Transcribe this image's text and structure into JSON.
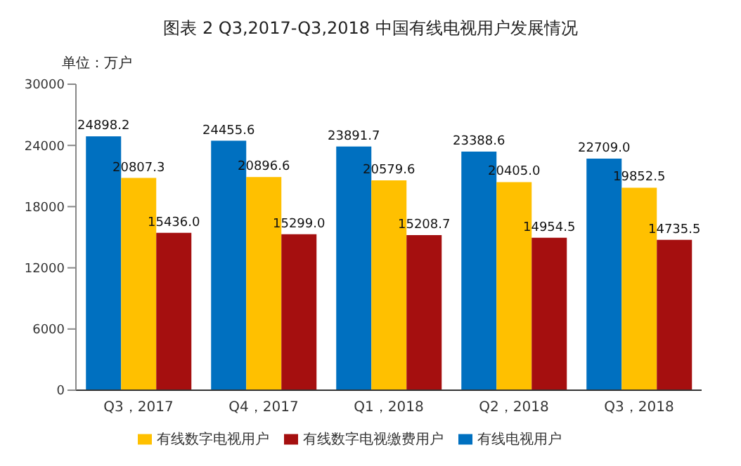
{
  "chart_data": {
    "type": "bar",
    "title": "图表 2 Q3,2017-Q3,2018  中国有线电视用户发展情况",
    "ylabel": "单位：万户",
    "categories": [
      "Q3，2017",
      "Q4，2017",
      "Q1，2018",
      "Q2，2018",
      "Q3，2018"
    ],
    "series": [
      {
        "name": "有线电视用户",
        "color": "#0070c0",
        "values": [
          24898.2,
          24455.6,
          23891.7,
          23388.6,
          22709
        ],
        "value_labels": [
          "24898.2",
          "24455.6",
          "23891.7",
          "23388.6",
          "22709.0"
        ]
      },
      {
        "name": "有线数字电视用户",
        "color": "#ffc000",
        "values": [
          20807.3,
          20896.6,
          20579.6,
          20405,
          19852.5
        ],
        "value_labels": [
          "20807.3",
          "20896.6",
          "20579.6",
          "20405.0",
          "19852.5"
        ]
      },
      {
        "name": "有线数字电视缴费用户",
        "color": "#a50f0f",
        "values": [
          15436,
          15299,
          15208.7,
          14954.5,
          14735.5
        ],
        "value_labels": [
          "15436.0",
          "15299.0",
          "15208.7",
          "14954.5",
          "14735.5"
        ]
      }
    ],
    "ylim": [
      0,
      30000
    ],
    "yticks": [
      0,
      6000,
      12000,
      18000,
      24000,
      30000
    ],
    "legend": "bottom"
  }
}
